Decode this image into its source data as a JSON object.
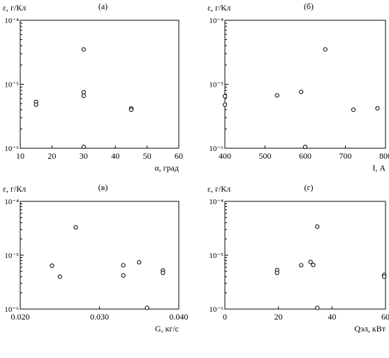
{
  "chart_data": [
    {
      "type": "scatter",
      "panel_label": "(а)",
      "ylabel": "ε, г/Кл",
      "xlabel": "α, град",
      "xlim": [
        10,
        60
      ],
      "xticks": [
        10,
        20,
        30,
        40,
        50,
        60
      ],
      "xtick_labels": [
        "10",
        "20",
        "30",
        "40",
        "50",
        "60"
      ],
      "ylim": [
        1e-06,
        0.0001
      ],
      "yscale": "log",
      "ytick_labels": [
        "10⁻⁶",
        "10⁻⁵",
        "10⁻⁴"
      ],
      "points": [
        {
          "x": 15,
          "y": 5.3e-06
        },
        {
          "x": 15,
          "y": 4.8e-06
        },
        {
          "x": 30,
          "y": 3.5e-05
        },
        {
          "x": 30,
          "y": 7.5e-06
        },
        {
          "x": 30,
          "y": 6.6e-06
        },
        {
          "x": 30,
          "y": 1.05e-06
        },
        {
          "x": 45,
          "y": 4.2e-06
        },
        {
          "x": 45,
          "y": 4e-06
        }
      ]
    },
    {
      "type": "scatter",
      "panel_label": "(б)",
      "ylabel": "ε, г/Кл",
      "xlabel": "I, А",
      "xlim": [
        400,
        800
      ],
      "xticks": [
        400,
        500,
        600,
        700,
        800
      ],
      "xtick_labels": [
        "400",
        "500",
        "600",
        "700",
        "800"
      ],
      "ylim": [
        1e-06,
        0.0001
      ],
      "yscale": "log",
      "ytick_labels": [
        "10⁻⁶",
        "10⁻⁵",
        "10⁻⁴"
      ],
      "points": [
        {
          "x": 400,
          "y": 6.5e-06
        },
        {
          "x": 400,
          "y": 4.8e-06
        },
        {
          "x": 530,
          "y": 6.7e-06
        },
        {
          "x": 590,
          "y": 7.6e-06
        },
        {
          "x": 600,
          "y": 1.05e-06
        },
        {
          "x": 650,
          "y": 3.5e-05
        },
        {
          "x": 720,
          "y": 4e-06
        },
        {
          "x": 780,
          "y": 4.2e-06
        }
      ]
    },
    {
      "type": "scatter",
      "panel_label": "(в)",
      "ylabel": "ε, г/Кл",
      "xlabel": "G, кг/с",
      "xlim": [
        0.02,
        0.04
      ],
      "xticks": [
        0.02,
        0.03,
        0.04
      ],
      "xtick_labels": [
        "0.020",
        "0.030",
        "0.040"
      ],
      "ylim": [
        1e-06,
        0.0001
      ],
      "yscale": "log",
      "ytick_labels": [
        "10⁻⁶",
        "10⁻⁵",
        "10⁻⁴"
      ],
      "points": [
        {
          "x": 0.024,
          "y": 6.4e-06
        },
        {
          "x": 0.025,
          "y": 4e-06
        },
        {
          "x": 0.027,
          "y": 3.3e-05
        },
        {
          "x": 0.033,
          "y": 6.5e-06
        },
        {
          "x": 0.033,
          "y": 4.2e-06
        },
        {
          "x": 0.035,
          "y": 7.4e-06
        },
        {
          "x": 0.036,
          "y": 1.05e-06
        },
        {
          "x": 0.038,
          "y": 5.2e-06
        },
        {
          "x": 0.038,
          "y": 4.7e-06
        }
      ]
    },
    {
      "type": "scatter",
      "panel_label": "(г)",
      "ylabel": "ε, г/Кл",
      "xlabel": "Qэл, кВт",
      "xlim": [
        0,
        60
      ],
      "xticks": [
        0,
        20,
        40,
        60
      ],
      "xtick_labels": [
        "0",
        "20",
        "40",
        "60"
      ],
      "ylim": [
        1e-06,
        0.0001
      ],
      "yscale": "log",
      "ytick_labels": [
        "10⁻⁶",
        "10⁻⁵",
        "10⁻⁴"
      ],
      "points": [
        {
          "x": 19.5,
          "y": 5.3e-06
        },
        {
          "x": 19.5,
          "y": 4.7e-06
        },
        {
          "x": 28.5,
          "y": 6.5e-06
        },
        {
          "x": 32,
          "y": 7.5e-06
        },
        {
          "x": 33,
          "y": 6.6e-06
        },
        {
          "x": 34.5,
          "y": 3.4e-05
        },
        {
          "x": 34.5,
          "y": 1.05e-06
        },
        {
          "x": 59.5,
          "y": 4.3e-06
        },
        {
          "x": 59.5,
          "y": 4e-06
        }
      ]
    }
  ]
}
